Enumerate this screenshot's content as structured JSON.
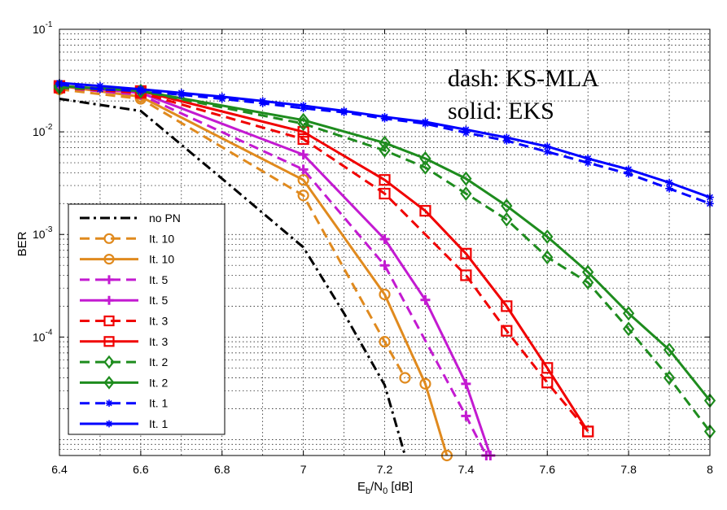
{
  "chart_data": {
    "type": "line",
    "yscale": "log",
    "xlabel": {
      "main": "E",
      "sub1": "b",
      "mid": "/N",
      "sub2": "0",
      "unit": " [dB]"
    },
    "ylabel": "BER",
    "xlim": [
      6.4,
      8.0
    ],
    "ylim": [
      7e-06,
      0.1
    ],
    "x_ticks": [
      6.4,
      6.6,
      6.8,
      7.0,
      7.2,
      7.4,
      7.6,
      7.8,
      8.0
    ],
    "x_tick_labels": [
      "6.4",
      "6.6",
      "6.8",
      "7",
      "7.2",
      "7.4",
      "7.6",
      "7.8",
      "8"
    ],
    "y_ticks": [
      0.1,
      0.01,
      0.001,
      0.0001
    ],
    "y_tick_labels": [
      {
        "base": "10",
        "exp": "-1"
      },
      {
        "base": "10",
        "exp": "-2"
      },
      {
        "base": "10",
        "exp": "-3"
      },
      {
        "base": "10",
        "exp": "-4"
      }
    ],
    "grid": true,
    "annotations": [
      "dash: KS-MLA",
      "solid: EKS"
    ],
    "legend_position": "bottom-left",
    "colors": {
      "black": "#000000",
      "orange": "#E08A1E",
      "purple": "#C31AD1",
      "red": "#F00000",
      "green": "#1E8C1E",
      "blue": "#0000FF"
    },
    "series": [
      {
        "name": "no PN",
        "color": "#000000",
        "dash": "dashdot",
        "marker": "none",
        "x": [
          6.4,
          6.6,
          6.8,
          7.0,
          7.1,
          7.2,
          7.25
        ],
        "y": [
          0.021,
          0.016,
          0.0035,
          0.00075,
          0.00017,
          3.4e-05,
          7e-06
        ]
      },
      {
        "name": "It. 10",
        "color": "#E08A1E",
        "dash": "dashed",
        "marker": "circle",
        "x": [
          6.4,
          6.6,
          7.0,
          7.2,
          7.25
        ],
        "y": [
          0.026,
          0.021,
          0.0024,
          9e-05,
          4e-05
        ]
      },
      {
        "name": "It. 10",
        "color": "#E08A1E",
        "dash": "solid",
        "marker": "circle",
        "x": [
          6.4,
          6.6,
          7.0,
          7.2,
          7.3,
          7.353
        ],
        "y": [
          0.028,
          0.022,
          0.0034,
          0.00026,
          3.5e-05,
          7e-06
        ]
      },
      {
        "name": "It. 5",
        "color": "#C31AD1",
        "dash": "dashed",
        "marker": "plus",
        "x": [
          6.4,
          6.6,
          7.0,
          7.2,
          7.4,
          7.45
        ],
        "y": [
          0.027,
          0.023,
          0.0043,
          0.0005,
          1.7e-05,
          7e-06
        ]
      },
      {
        "name": "It. 5",
        "color": "#C31AD1",
        "dash": "solid",
        "marker": "plus",
        "x": [
          6.4,
          6.6,
          7.0,
          7.2,
          7.3,
          7.4,
          7.46
        ],
        "y": [
          0.028,
          0.024,
          0.006,
          0.0009,
          0.00023,
          3.5e-05,
          7e-06
        ]
      },
      {
        "name": "It. 3",
        "color": "#F00000",
        "dash": "dashed",
        "marker": "square",
        "x": [
          6.4,
          6.6,
          7.0,
          7.2,
          7.4,
          7.5,
          7.6,
          7.7
        ],
        "y": [
          0.027,
          0.024,
          0.0085,
          0.0025,
          0.0004,
          0.000115,
          3.6e-05,
          1.2e-05
        ]
      },
      {
        "name": "It. 3",
        "color": "#F00000",
        "dash": "solid",
        "marker": "square",
        "x": [
          6.4,
          6.6,
          7.0,
          7.2,
          7.3,
          7.4,
          7.5,
          7.6,
          7.7
        ],
        "y": [
          0.028,
          0.025,
          0.01,
          0.0034,
          0.0017,
          0.00065,
          0.0002,
          5e-05,
          1.2e-05
        ]
      },
      {
        "name": "It. 2",
        "color": "#1E8C1E",
        "dash": "dashed",
        "marker": "diamond",
        "x": [
          6.4,
          6.6,
          7.0,
          7.2,
          7.3,
          7.4,
          7.5,
          7.6,
          7.7,
          7.8,
          7.9,
          8.0
        ],
        "y": [
          0.027,
          0.025,
          0.012,
          0.0066,
          0.0045,
          0.0025,
          0.0014,
          0.0006,
          0.00034,
          0.00012,
          4e-05,
          1.2e-05
        ]
      },
      {
        "name": "It. 2",
        "color": "#1E8C1E",
        "dash": "solid",
        "marker": "diamond",
        "x": [
          6.4,
          6.6,
          7.0,
          7.2,
          7.3,
          7.4,
          7.5,
          7.6,
          7.7,
          7.8,
          7.9,
          8.0
        ],
        "y": [
          0.028,
          0.025,
          0.013,
          0.0078,
          0.0055,
          0.0035,
          0.0019,
          0.00095,
          0.00043,
          0.00017,
          7.5e-05,
          2.4e-05
        ]
      },
      {
        "name": "It. 1",
        "color": "#0000FF",
        "dash": "dashed",
        "marker": "star",
        "x": [
          6.4,
          6.5,
          6.6,
          6.7,
          6.8,
          6.9,
          7.0,
          7.1,
          7.2,
          7.3,
          7.4,
          7.5,
          7.6,
          7.7,
          7.8,
          7.9,
          8.0
        ],
        "y": [
          0.029,
          0.026,
          0.025,
          0.023,
          0.021,
          0.019,
          0.017,
          0.0155,
          0.0135,
          0.012,
          0.0098,
          0.0082,
          0.0064,
          0.005,
          0.0039,
          0.0028,
          0.002
        ]
      },
      {
        "name": "It. 1",
        "color": "#0000FF",
        "dash": "solid",
        "marker": "star",
        "x": [
          6.4,
          6.5,
          6.6,
          6.7,
          6.8,
          6.9,
          7.0,
          7.1,
          7.2,
          7.3,
          7.4,
          7.5,
          7.6,
          7.7,
          7.8,
          7.9,
          8.0
        ],
        "y": [
          0.03,
          0.028,
          0.026,
          0.024,
          0.022,
          0.02,
          0.018,
          0.016,
          0.014,
          0.0125,
          0.0105,
          0.0088,
          0.0072,
          0.0055,
          0.0043,
          0.0032,
          0.0023
        ]
      }
    ]
  }
}
